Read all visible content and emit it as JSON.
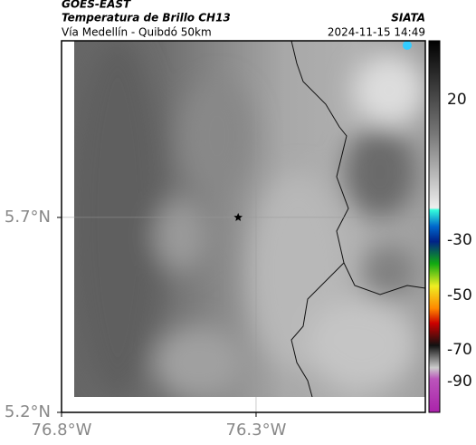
{
  "header": {
    "source": "GOES-EAST",
    "title": "Temperatura de Brillo CH13",
    "subtitle": "Vía Medellín - Quibdó 50km",
    "org": "SIATA",
    "datetime": "2024-11-15 14:49"
  },
  "map": {
    "xlim": [
      -76.8,
      -75.865
    ],
    "ylim": [
      5.2,
      6.153
    ],
    "xticks": [
      {
        "value": -76.8,
        "label": "76.8°W"
      },
      {
        "value": -76.3,
        "label": "76.3°W"
      }
    ],
    "yticks": [
      {
        "value": 5.2,
        "label": "5.2°N"
      },
      {
        "value": 5.7,
        "label": "5.7°N"
      }
    ],
    "marker": {
      "lon": -76.346,
      "lat": 5.7
    }
  },
  "colorbar": {
    "ticks": [
      "20",
      "-30",
      "-50",
      "-70",
      "-90"
    ]
  }
}
